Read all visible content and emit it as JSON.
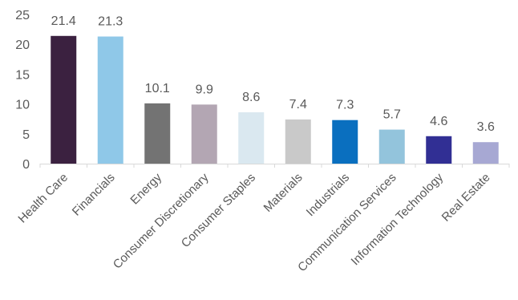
{
  "chart_data": {
    "type": "bar",
    "title": "",
    "xlabel": "",
    "ylabel": "",
    "ylim": [
      0,
      25
    ],
    "yticks": [
      0,
      5,
      10,
      15,
      20,
      25
    ],
    "grid": false,
    "legend": "none",
    "categories": [
      "Health Care",
      "Financials",
      "Energy",
      "Consumer Discretionary",
      "Consumer Staples",
      "Materials",
      "Industrials",
      "Communication Services",
      "Information Technology",
      "Real Estate"
    ],
    "values": [
      21.4,
      21.3,
      10.1,
      9.9,
      8.6,
      7.4,
      7.3,
      5.7,
      4.6,
      3.6
    ],
    "value_labels": [
      "21.4",
      "21.3",
      "10.1",
      "9.9",
      "8.6",
      "7.4",
      "7.3",
      "5.7",
      "4.6",
      "3.6"
    ],
    "colors": [
      "#3b2140",
      "#8fc8e8",
      "#737373",
      "#b3a6b3",
      "#dae8f0",
      "#c9c9c9",
      "#0a6fbf",
      "#93c4dc",
      "#312f94",
      "#a7a8d3"
    ]
  }
}
